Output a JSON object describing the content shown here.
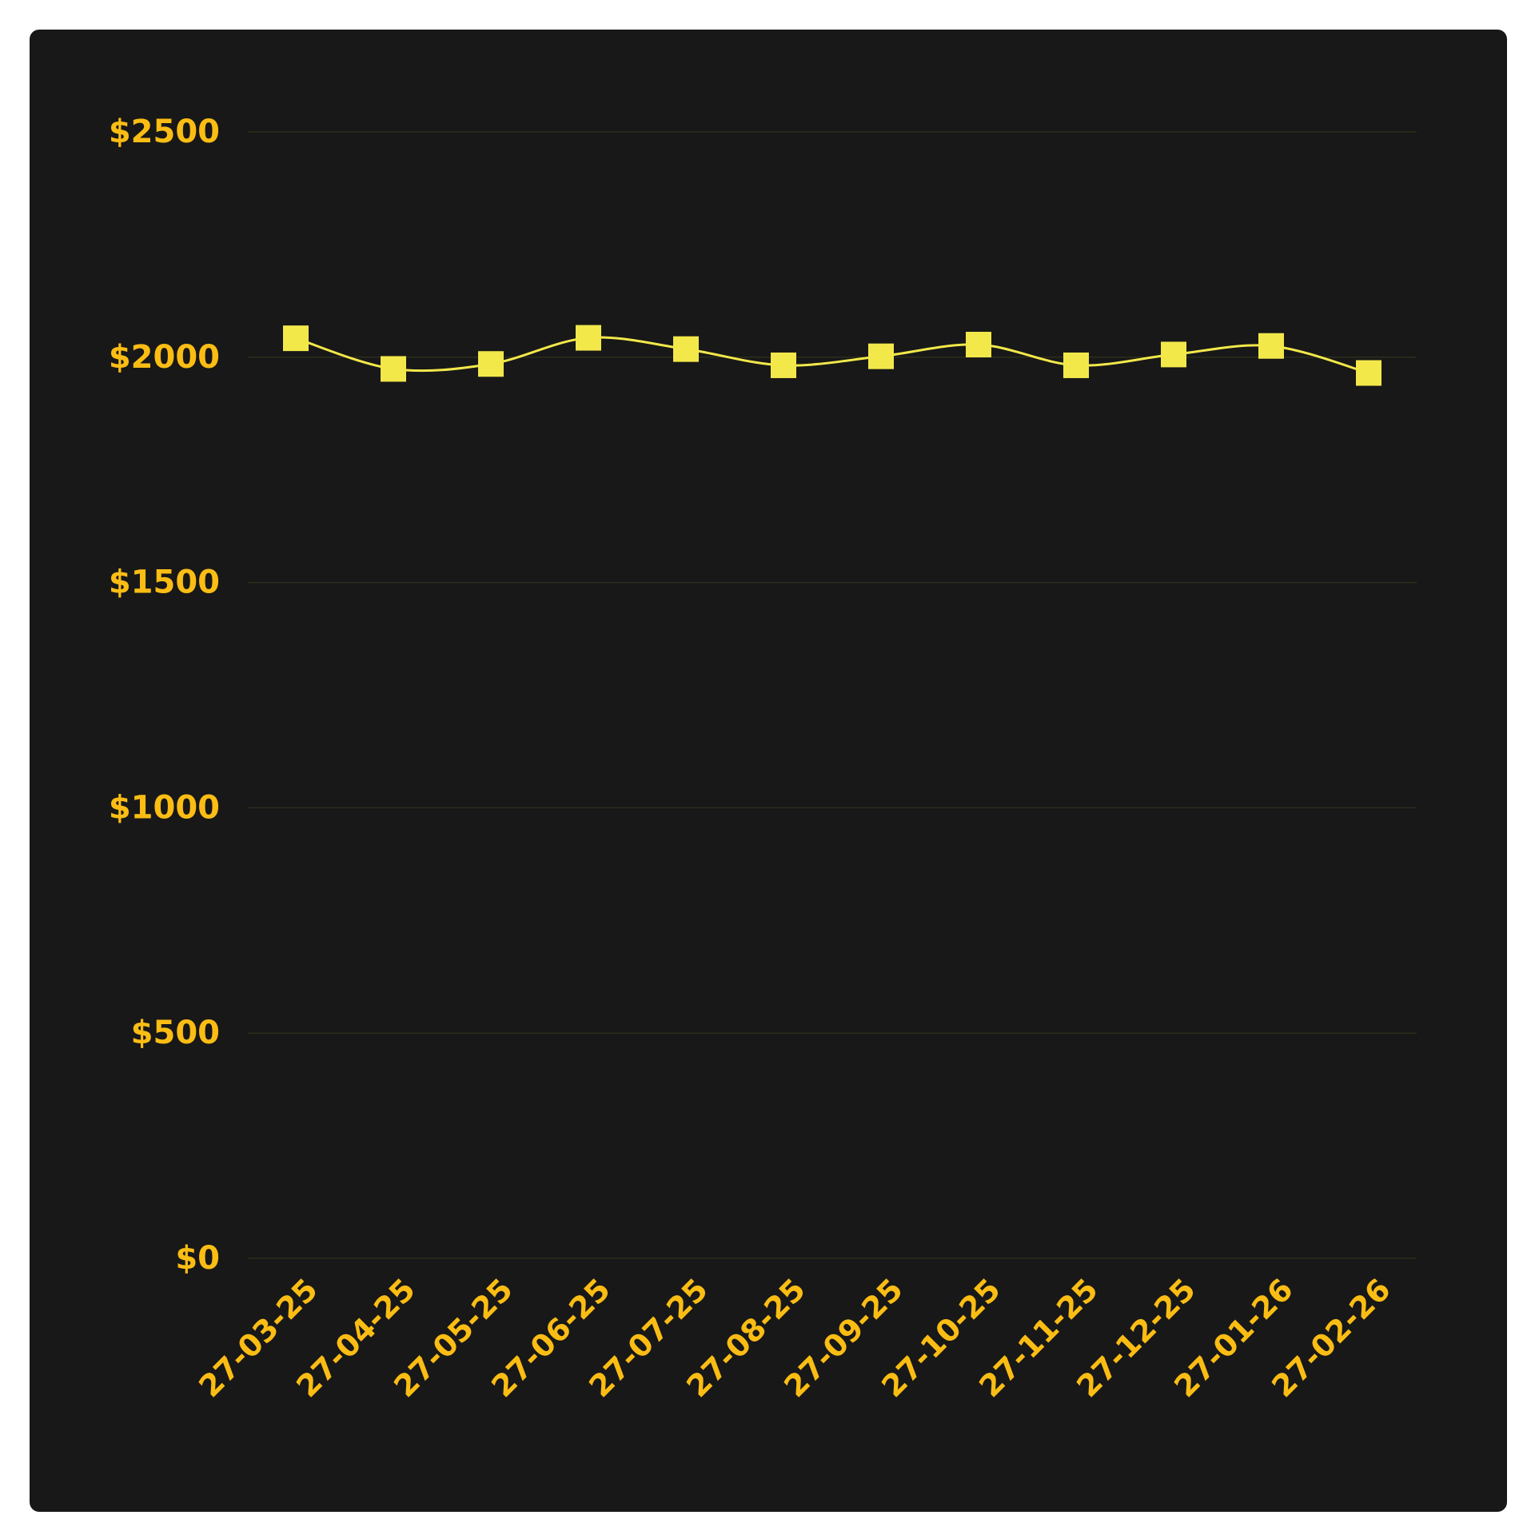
{
  "colors": {
    "background": "#181818",
    "page": "#ffffff",
    "line": "#f2e84a",
    "marker": "#f2e84a",
    "tick_label": "#fbbd14",
    "grid": "#2b2d1c"
  },
  "chart_data": {
    "type": "line",
    "title": "",
    "xlabel": "",
    "ylabel": "",
    "categories": [
      "27-03-25",
      "27-04-25",
      "27-05-25",
      "27-06-25",
      "27-07-25",
      "27-08-25",
      "27-09-25",
      "27-10-25",
      "27-11-25",
      "27-12-25",
      "27-01-26",
      "27-02-26"
    ],
    "series": [
      {
        "values": [
          2042,
          1974,
          1985,
          2043,
          2018,
          1982,
          2002,
          2028,
          1982,
          2006,
          2025,
          1965
        ]
      }
    ],
    "y_ticks": [
      0,
      500,
      1000,
      1500,
      2000,
      2500
    ],
    "y_tick_labels": [
      "$0",
      "$500",
      "$1000",
      "$1500",
      "$2000",
      "$2500"
    ],
    "ylim": [
      0,
      2500
    ],
    "grid": true,
    "legend": false,
    "marker": "square",
    "curve": "smooth"
  }
}
